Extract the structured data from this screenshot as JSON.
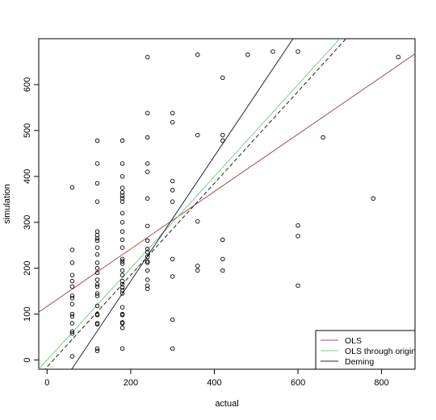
{
  "chart_data": {
    "type": "scatter",
    "title": "",
    "xlabel": "actual",
    "ylabel": "simulation",
    "xlim": [
      -20,
      880
    ],
    "ylim": [
      -20,
      700
    ],
    "xticks": [
      0,
      200,
      400,
      600,
      800
    ],
    "yticks": [
      0,
      100,
      200,
      300,
      400,
      500,
      600
    ],
    "grid": false,
    "legend_position": "bottom-right",
    "points": [
      [
        60,
        8
      ],
      [
        60,
        58
      ],
      [
        60,
        62
      ],
      [
        60,
        80
      ],
      [
        60,
        95
      ],
      [
        60,
        100
      ],
      [
        60,
        122
      ],
      [
        60,
        135
      ],
      [
        60,
        140
      ],
      [
        60,
        160
      ],
      [
        60,
        172
      ],
      [
        60,
        185
      ],
      [
        60,
        212
      ],
      [
        60,
        240
      ],
      [
        60,
        376
      ],
      [
        120,
        20
      ],
      [
        120,
        25
      ],
      [
        120,
        78
      ],
      [
        120,
        80
      ],
      [
        120,
        98
      ],
      [
        120,
        100
      ],
      [
        120,
        118
      ],
      [
        120,
        140
      ],
      [
        120,
        145
      ],
      [
        120,
        160
      ],
      [
        120,
        165
      ],
      [
        120,
        175
      ],
      [
        120,
        190
      ],
      [
        120,
        200
      ],
      [
        120,
        212
      ],
      [
        120,
        230
      ],
      [
        120,
        245
      ],
      [
        120,
        260
      ],
      [
        120,
        265
      ],
      [
        120,
        272
      ],
      [
        120,
        280
      ],
      [
        120,
        345
      ],
      [
        120,
        385
      ],
      [
        120,
        428
      ],
      [
        120,
        478
      ],
      [
        180,
        25
      ],
      [
        180,
        70
      ],
      [
        180,
        80
      ],
      [
        180,
        82
      ],
      [
        180,
        98
      ],
      [
        180,
        100
      ],
      [
        180,
        115
      ],
      [
        180,
        145
      ],
      [
        180,
        152
      ],
      [
        180,
        158
      ],
      [
        180,
        165
      ],
      [
        180,
        172
      ],
      [
        180,
        185
      ],
      [
        180,
        195
      ],
      [
        180,
        210
      ],
      [
        180,
        215
      ],
      [
        180,
        220
      ],
      [
        180,
        245
      ],
      [
        180,
        262
      ],
      [
        180,
        280
      ],
      [
        180,
        300
      ],
      [
        180,
        320
      ],
      [
        180,
        345
      ],
      [
        180,
        352
      ],
      [
        180,
        358
      ],
      [
        180,
        365
      ],
      [
        180,
        375
      ],
      [
        180,
        400
      ],
      [
        180,
        428
      ],
      [
        180,
        478
      ],
      [
        240,
        155
      ],
      [
        240,
        162
      ],
      [
        240,
        175
      ],
      [
        240,
        195
      ],
      [
        240,
        212
      ],
      [
        240,
        215
      ],
      [
        240,
        225
      ],
      [
        240,
        235
      ],
      [
        240,
        242
      ],
      [
        240,
        260
      ],
      [
        240,
        292
      ],
      [
        240,
        352
      ],
      [
        240,
        410
      ],
      [
        240,
        428
      ],
      [
        240,
        485
      ],
      [
        240,
        538
      ],
      [
        240,
        660
      ],
      [
        300,
        25
      ],
      [
        300,
        88
      ],
      [
        300,
        182
      ],
      [
        300,
        220
      ],
      [
        300,
        345
      ],
      [
        300,
        370
      ],
      [
        300,
        390
      ],
      [
        300,
        518
      ],
      [
        300,
        538
      ],
      [
        360,
        195
      ],
      [
        360,
        205
      ],
      [
        360,
        302
      ],
      [
        360,
        490
      ],
      [
        360,
        665
      ],
      [
        420,
        195
      ],
      [
        420,
        220
      ],
      [
        420,
        262
      ],
      [
        420,
        478
      ],
      [
        420,
        490
      ],
      [
        420,
        615
      ],
      [
        480,
        665
      ],
      [
        540,
        672
      ],
      [
        600,
        162
      ],
      [
        600,
        270
      ],
      [
        600,
        293
      ],
      [
        600,
        672
      ],
      [
        660,
        485
      ],
      [
        780,
        352
      ],
      [
        840,
        660
      ]
    ],
    "series": [
      {
        "name": "OLS",
        "color": "#a0524f",
        "style": "solid",
        "intercept": 117,
        "slope": 0.625
      },
      {
        "name": "OLS through origin",
        "color": "#7fcc85",
        "style": "solid",
        "intercept": 0,
        "slope": 1.0
      },
      {
        "name": "Deming",
        "color": "#23234a",
        "style": "solid",
        "intercept": -100,
        "slope": 1.36
      },
      {
        "name": "",
        "color": "#222222",
        "style": "dashed",
        "intercept": -15,
        "slope": 1.0
      }
    ]
  }
}
